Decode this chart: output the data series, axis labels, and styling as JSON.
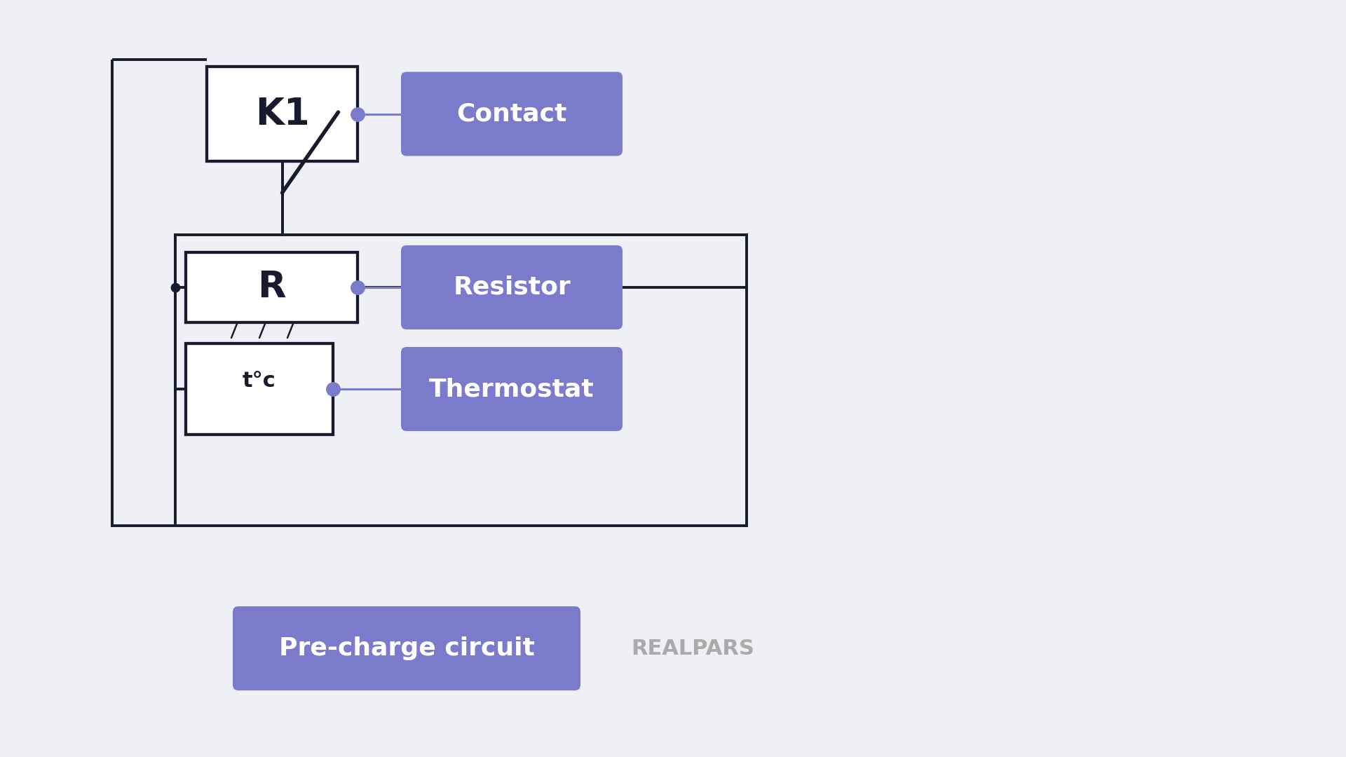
{
  "bg_color": "#eef0f5",
  "line_color": "#1a1a2e",
  "purple_color": "#7b7bcc",
  "white": "#ffffff",
  "gray_text": "#aaaaaa",
  "line_width": 2.8,
  "title": "Pre-charge circuit",
  "realpars_text": "REALPARS",
  "labels": [
    "Contact",
    "Resistor",
    "Thermostat"
  ],
  "label_fontsize": 26,
  "title_fontsize": 26,
  "realpars_fontsize": 22,
  "k1_label": "K1",
  "r_label": "R",
  "th_label": "t°c"
}
